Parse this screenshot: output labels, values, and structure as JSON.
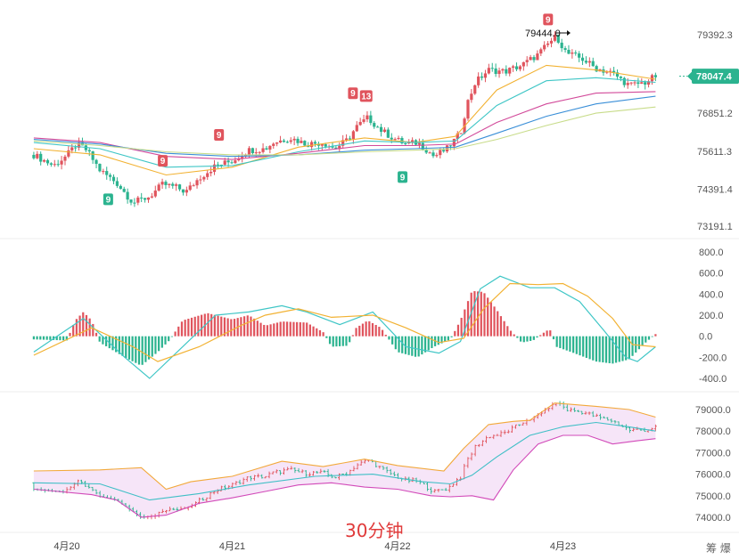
{
  "period_label": "30分钟",
  "corner_label": "筹 爆",
  "colors": {
    "up": "#e0545d",
    "down": "#2bb38f",
    "ma_yellow": "#f2b233",
    "ma_cyan": "#3fc6c6",
    "ma_pink": "#d24a9a",
    "ma_blue": "#3a8fd8",
    "ma_lime": "#c8dc8a",
    "boll_upper": "#f2a93b",
    "boll_lower": "#d24ab9",
    "boll_mid": "#3fbfc6",
    "boll_fill": "#f3dcf6",
    "price_badge": "#2bb38f"
  },
  "chart_data": [
    {
      "type": "candlestick",
      "panel": "price",
      "ylim": [
        73191.1,
        79392.3
      ],
      "y_ticks": [
        "79392.3",
        "76851.2",
        "75611.3",
        "74391.4",
        "73191.1"
      ],
      "x_ticks": [
        "4月20",
        "4月21",
        "4月22",
        "4月23"
      ],
      "current_price": "78047.4",
      "max_annotation": "79444.0",
      "nine_markers": [
        {
          "label": "9",
          "kind": "down",
          "day": 20.25,
          "price": 74420
        },
        {
          "label": "9",
          "kind": "up",
          "day": 20.58,
          "price": 74860
        },
        {
          "label": "9",
          "kind": "up",
          "day": 20.92,
          "price": 75700
        },
        {
          "label": "9",
          "kind": "up",
          "day": 21.73,
          "price": 77050
        },
        {
          "label": "13",
          "kind": "up",
          "day": 21.81,
          "price": 76960
        },
        {
          "label": "9",
          "kind": "down",
          "day": 22.03,
          "price": 75140
        },
        {
          "label": "9",
          "kind": "up",
          "day": 22.91,
          "price": 79440
        }
      ],
      "path": [
        [
          19.8,
          75500
        ],
        [
          19.92,
          75150
        ],
        [
          20.0,
          75480
        ],
        [
          20.06,
          75850
        ],
        [
          20.12,
          75650
        ],
        [
          20.2,
          75000
        ],
        [
          20.3,
          74600
        ],
        [
          20.4,
          73950
        ],
        [
          20.5,
          74150
        ],
        [
          20.58,
          74550
        ],
        [
          20.66,
          74450
        ],
        [
          20.72,
          74300
        ],
        [
          20.8,
          74750
        ],
        [
          20.9,
          75150
        ],
        [
          21.0,
          75300
        ],
        [
          21.1,
          75650
        ],
        [
          21.2,
          75700
        ],
        [
          21.25,
          75900
        ],
        [
          21.35,
          76050
        ],
        [
          21.45,
          75850
        ],
        [
          21.55,
          75900
        ],
        [
          21.62,
          75700
        ],
        [
          21.7,
          76000
        ],
        [
          21.75,
          76400
        ],
        [
          21.82,
          76700
        ],
        [
          21.9,
          76300
        ],
        [
          21.97,
          76050
        ],
        [
          22.05,
          75850
        ],
        [
          22.12,
          75900
        ],
        [
          22.18,
          75650
        ],
        [
          22.22,
          75450
        ],
        [
          22.3,
          75700
        ],
        [
          22.38,
          76200
        ],
        [
          22.42,
          77150
        ],
        [
          22.47,
          77850
        ],
        [
          22.55,
          78250
        ],
        [
          22.65,
          78200
        ],
        [
          22.75,
          78400
        ],
        [
          22.85,
          78750
        ],
        [
          22.92,
          79150
        ],
        [
          22.96,
          79350
        ],
        [
          23.02,
          78800
        ],
        [
          23.12,
          78600
        ],
        [
          23.2,
          78300
        ],
        [
          23.3,
          78150
        ],
        [
          23.4,
          77750
        ],
        [
          23.5,
          77850
        ],
        [
          23.56,
          78050
        ]
      ],
      "moving_averages": [
        {
          "color_key": "ma_yellow",
          "points": [
            [
              19.8,
              75700
            ],
            [
              20.2,
              75500
            ],
            [
              20.6,
              74850
            ],
            [
              21.0,
              75100
            ],
            [
              21.4,
              75750
            ],
            [
              21.8,
              76050
            ],
            [
              22.1,
              75900
            ],
            [
              22.35,
              76100
            ],
            [
              22.6,
              77600
            ],
            [
              22.9,
              78400
            ],
            [
              23.2,
              78250
            ],
            [
              23.56,
              77950
            ]
          ]
        },
        {
          "color_key": "ma_cyan",
          "points": [
            [
              19.8,
              75900
            ],
            [
              20.2,
              75700
            ],
            [
              20.6,
              75100
            ],
            [
              21.0,
              75150
            ],
            [
              21.4,
              75600
            ],
            [
              21.8,
              75950
            ],
            [
              22.1,
              75900
            ],
            [
              22.35,
              75950
            ],
            [
              22.6,
              77100
            ],
            [
              22.9,
              77900
            ],
            [
              23.2,
              78000
            ],
            [
              23.56,
              77850
            ]
          ]
        },
        {
          "color_key": "ma_pink",
          "points": [
            [
              19.8,
              76050
            ],
            [
              20.2,
              75900
            ],
            [
              20.6,
              75450
            ],
            [
              21.0,
              75350
            ],
            [
              21.4,
              75550
            ],
            [
              21.8,
              75800
            ],
            [
              22.1,
              75800
            ],
            [
              22.35,
              75850
            ],
            [
              22.6,
              76550
            ],
            [
              22.9,
              77150
            ],
            [
              23.2,
              77500
            ],
            [
              23.56,
              77550
            ]
          ]
        },
        {
          "color_key": "ma_blue",
          "points": [
            [
              19.8,
              76000
            ],
            [
              20.2,
              75850
            ],
            [
              20.6,
              75550
            ],
            [
              21.0,
              75450
            ],
            [
              21.4,
              75500
            ],
            [
              21.8,
              75650
            ],
            [
              22.1,
              75700
            ],
            [
              22.35,
              75750
            ],
            [
              22.6,
              76200
            ],
            [
              22.9,
              76750
            ],
            [
              23.2,
              77150
            ],
            [
              23.56,
              77400
            ]
          ]
        },
        {
          "color_key": "ma_lime",
          "points": [
            [
              19.8,
              75950
            ],
            [
              20.2,
              75800
            ],
            [
              20.6,
              75600
            ],
            [
              21.0,
              75500
            ],
            [
              21.4,
              75500
            ],
            [
              21.8,
              75600
            ],
            [
              22.1,
              75650
            ],
            [
              22.35,
              75700
            ],
            [
              22.6,
              76000
            ],
            [
              22.9,
              76450
            ],
            [
              23.2,
              76850
            ],
            [
              23.56,
              77050
            ]
          ]
        }
      ]
    },
    {
      "type": "macd",
      "panel": "macd",
      "ylim": [
        -400.0,
        800.0
      ],
      "y_ticks": [
        "800.0",
        "600.0",
        "400.0",
        "200.0",
        "0.0",
        "-200.0",
        "-400.0"
      ],
      "histogram_profile": [
        [
          19.8,
          -30
        ],
        [
          20.0,
          -40
        ],
        [
          20.05,
          150
        ],
        [
          20.1,
          230
        ],
        [
          20.15,
          150
        ],
        [
          20.2,
          -60
        ],
        [
          20.35,
          -200
        ],
        [
          20.45,
          -280
        ],
        [
          20.55,
          -150
        ],
        [
          20.62,
          -40
        ],
        [
          20.7,
          150
        ],
        [
          20.85,
          220
        ],
        [
          21.0,
          160
        ],
        [
          21.1,
          200
        ],
        [
          21.2,
          100
        ],
        [
          21.3,
          140
        ],
        [
          21.45,
          130
        ],
        [
          21.55,
          40
        ],
        [
          21.6,
          -100
        ],
        [
          21.7,
          -90
        ],
        [
          21.75,
          80
        ],
        [
          21.82,
          150
        ],
        [
          21.9,
          80
        ],
        [
          22.0,
          -150
        ],
        [
          22.12,
          -200
        ],
        [
          22.22,
          -100
        ],
        [
          22.32,
          -30
        ],
        [
          22.38,
          150
        ],
        [
          22.45,
          430
        ],
        [
          22.52,
          420
        ],
        [
          22.6,
          250
        ],
        [
          22.68,
          60
        ],
        [
          22.75,
          -60
        ],
        [
          22.82,
          -40
        ],
        [
          22.88,
          30
        ],
        [
          22.92,
          70
        ],
        [
          22.96,
          -100
        ],
        [
          23.05,
          -150
        ],
        [
          23.2,
          -240
        ],
        [
          23.3,
          -260
        ],
        [
          23.4,
          -220
        ],
        [
          23.5,
          -60
        ],
        [
          23.56,
          20
        ]
      ],
      "dif": [
        [
          19.8,
          -150
        ],
        [
          20.1,
          170
        ],
        [
          20.35,
          -200
        ],
        [
          20.5,
          -400
        ],
        [
          20.9,
          200
        ],
        [
          21.1,
          230
        ],
        [
          21.3,
          290
        ],
        [
          21.45,
          230
        ],
        [
          21.65,
          110
        ],
        [
          21.85,
          230
        ],
        [
          22.05,
          -100
        ],
        [
          22.25,
          -160
        ],
        [
          22.38,
          -50
        ],
        [
          22.5,
          450
        ],
        [
          22.62,
          570
        ],
        [
          22.8,
          460
        ],
        [
          22.95,
          460
        ],
        [
          23.1,
          330
        ],
        [
          23.25,
          50
        ],
        [
          23.38,
          -200
        ],
        [
          23.45,
          -240
        ],
        [
          23.56,
          -100
        ]
      ],
      "dea": [
        [
          19.8,
          -180
        ],
        [
          20.15,
          80
        ],
        [
          20.4,
          -100
        ],
        [
          20.55,
          -240
        ],
        [
          20.8,
          -100
        ],
        [
          21.05,
          100
        ],
        [
          21.2,
          200
        ],
        [
          21.4,
          260
        ],
        [
          21.6,
          180
        ],
        [
          21.85,
          200
        ],
        [
          22.05,
          80
        ],
        [
          22.25,
          -60
        ],
        [
          22.4,
          -20
        ],
        [
          22.52,
          260
        ],
        [
          22.68,
          500
        ],
        [
          22.85,
          490
        ],
        [
          23.0,
          500
        ],
        [
          23.15,
          380
        ],
        [
          23.3,
          170
        ],
        [
          23.42,
          -80
        ],
        [
          23.56,
          -100
        ]
      ]
    },
    {
      "type": "bollinger",
      "panel": "boll",
      "ylim": [
        74000.0,
        79000.0
      ],
      "y_ticks": [
        "79000.0",
        "78000.0",
        "77000.0",
        "76000.0",
        "75000.0",
        "74000.0"
      ],
      "upper": [
        [
          19.8,
          76150
        ],
        [
          20.2,
          76200
        ],
        [
          20.45,
          76300
        ],
        [
          20.6,
          75300
        ],
        [
          20.75,
          75650
        ],
        [
          21.0,
          75900
        ],
        [
          21.3,
          76600
        ],
        [
          21.55,
          76350
        ],
        [
          21.8,
          76700
        ],
        [
          22.0,
          76400
        ],
        [
          22.28,
          76150
        ],
        [
          22.4,
          77200
        ],
        [
          22.55,
          78300
        ],
        [
          22.7,
          78450
        ],
        [
          22.8,
          78500
        ],
        [
          22.95,
          79300
        ],
        [
          23.2,
          79150
        ],
        [
          23.4,
          79000
        ],
        [
          23.56,
          78650
        ]
      ],
      "lower": [
        [
          19.8,
          75300
        ],
        [
          20.15,
          75050
        ],
        [
          20.3,
          74800
        ],
        [
          20.45,
          74000
        ],
        [
          20.6,
          74100
        ],
        [
          20.8,
          74650
        ],
        [
          21.0,
          74900
        ],
        [
          21.2,
          75200
        ],
        [
          21.4,
          75500
        ],
        [
          21.6,
          75600
        ],
        [
          21.8,
          75400
        ],
        [
          22.0,
          75300
        ],
        [
          22.2,
          75000
        ],
        [
          22.32,
          74950
        ],
        [
          22.45,
          75000
        ],
        [
          22.58,
          74800
        ],
        [
          22.7,
          76200
        ],
        [
          22.85,
          77400
        ],
        [
          23.0,
          77800
        ],
        [
          23.15,
          77800
        ],
        [
          23.3,
          77400
        ],
        [
          23.45,
          77550
        ],
        [
          23.56,
          77650
        ]
      ],
      "mid": [
        [
          19.8,
          75600
        ],
        [
          20.2,
          75550
        ],
        [
          20.5,
          74800
        ],
        [
          20.8,
          75100
        ],
        [
          21.1,
          75500
        ],
        [
          21.5,
          75900
        ],
        [
          21.85,
          76000
        ],
        [
          22.15,
          75650
        ],
        [
          22.32,
          75550
        ],
        [
          22.45,
          75950
        ],
        [
          22.6,
          76800
        ],
        [
          22.8,
          77800
        ],
        [
          23.0,
          78200
        ],
        [
          23.2,
          78400
        ],
        [
          23.4,
          78200
        ],
        [
          23.56,
          78000
        ]
      ]
    }
  ]
}
